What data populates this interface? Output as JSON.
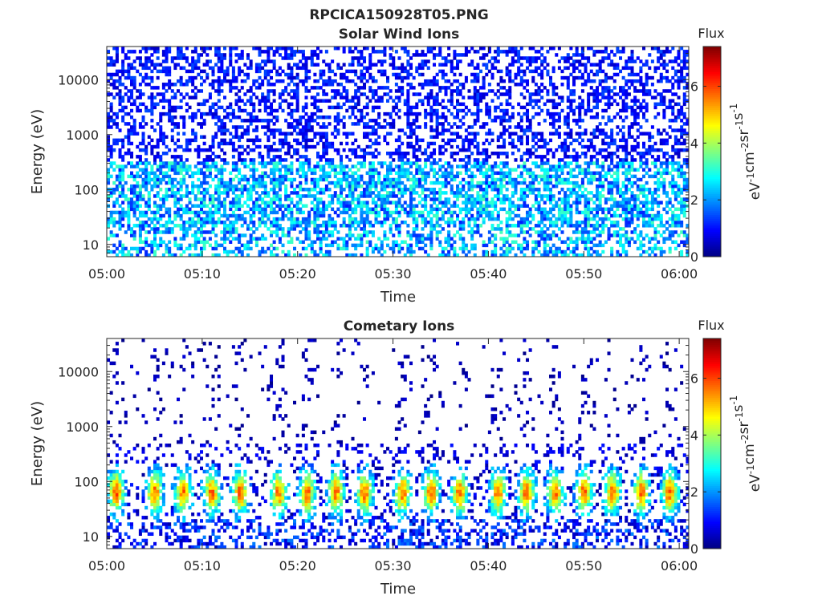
{
  "figure_title": "RPCICA150928T05.PNG",
  "chart_data": [
    {
      "type": "heatmap",
      "title": "Solar Wind Ions",
      "xlabel": "Time",
      "ylabel": "Energy (eV)",
      "xticks": [
        "05:00",
        "05:10",
        "05:20",
        "05:30",
        "05:40",
        "05:50",
        "06:00"
      ],
      "xlim": [
        "05:00",
        "06:01"
      ],
      "yticks": [
        10,
        100,
        1000,
        10000
      ],
      "ylim": [
        6,
        40000
      ],
      "yscale": "log",
      "colorbar": {
        "label_top": "Flux",
        "label": "eV-1cm-2sr-1s-1",
        "ticks": [
          0,
          2,
          4,
          6
        ],
        "range": [
          0,
          7.4
        ],
        "colormap": "jet"
      },
      "description_values": {
        "peak_flux": 3.5,
        "typical_flux": 1.0,
        "flux_by_energy_band": [
          {
            "energy_eV": [
              6,
              30
            ],
            "flux": 2.0
          },
          {
            "energy_eV": [
              30,
              300
            ],
            "flux": 1.8
          },
          {
            "energy_eV": [
              300,
              40000
            ],
            "flux": 0.7
          }
        ]
      }
    },
    {
      "type": "heatmap",
      "title": "Cometary Ions",
      "xlabel": "Time",
      "ylabel": "Energy (eV)",
      "xticks": [
        "05:00",
        "05:10",
        "05:20",
        "05:30",
        "05:40",
        "05:50",
        "06:00"
      ],
      "xlim": [
        "05:00",
        "06:01"
      ],
      "yticks": [
        10,
        100,
        1000,
        10000
      ],
      "ylim": [
        6,
        40000
      ],
      "yscale": "log",
      "colorbar": {
        "label_top": "Flux",
        "label": "eV-1cm-2sr-1s-1",
        "ticks": [
          0,
          2,
          4,
          6
        ],
        "range": [
          0,
          7.4
        ],
        "colormap": "jet"
      },
      "description_values": {
        "peak_flux": 5.5,
        "peak_energy_eV": 60,
        "pulse_period_min": 3.4,
        "pulse_times": [
          "05:01",
          "05:05",
          "05:08",
          "05:11",
          "05:14",
          "05:18",
          "05:21",
          "05:24",
          "05:27",
          "05:31",
          "05:34",
          "05:37",
          "05:41",
          "05:44",
          "05:47",
          "05:50",
          "05:53",
          "05:56",
          "05:59"
        ]
      }
    }
  ]
}
